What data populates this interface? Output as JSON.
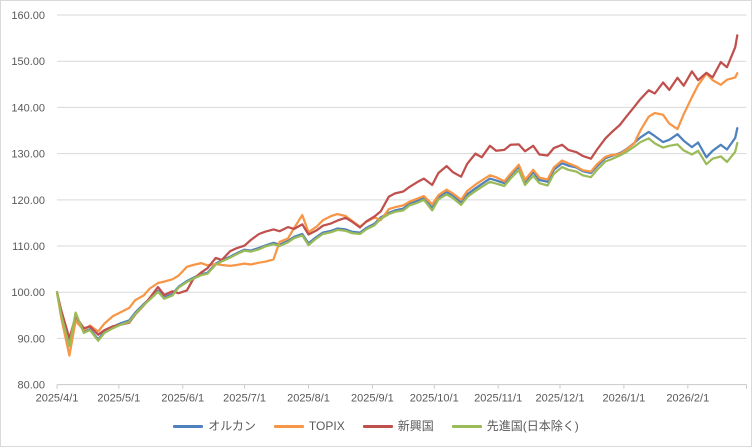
{
  "chart_data": {
    "type": "line",
    "title": "",
    "legend_position": "bottom",
    "grid": true,
    "y_axis": {
      "min": 80,
      "max": 160,
      "step": 10,
      "tick_labels": [
        "160.00",
        "150.00",
        "140.00",
        "130.00",
        "120.00",
        "110.00",
        "100.00",
        "90.00",
        "80.00"
      ]
    },
    "x_axis": {
      "tick_labels": [
        "2025/4/1",
        "2025/5/1",
        "2025/6/1",
        "2025/7/1",
        "2025/8/1",
        "2025/9/1",
        "2025/10/1",
        "2025/11/1",
        "2025/12/1",
        "2026/1/1",
        "2026/2/1"
      ],
      "start": "2025/4/1",
      "end": "2026/2/25"
    },
    "dates": [
      "2025/4/1",
      "2025/4/3",
      "2025/4/7",
      "2025/4/10",
      "2025/4/14",
      "2025/4/17",
      "2025/4/21",
      "2025/4/24",
      "2025/4/28",
      "2025/5/2",
      "2025/5/6",
      "2025/5/9",
      "2025/5/13",
      "2025/5/16",
      "2025/5/20",
      "2025/5/23",
      "2025/5/27",
      "2025/5/30",
      "2025/6/3",
      "2025/6/6",
      "2025/6/10",
      "2025/6/13",
      "2025/6/17",
      "2025/6/20",
      "2025/6/24",
      "2025/6/27",
      "2025/7/1",
      "2025/7/4",
      "2025/7/8",
      "2025/7/11",
      "2025/7/15",
      "2025/7/18",
      "2025/7/22",
      "2025/7/25",
      "2025/7/29",
      "2025/8/1",
      "2025/8/5",
      "2025/8/8",
      "2025/8/12",
      "2025/8/15",
      "2025/8/19",
      "2025/8/22",
      "2025/8/26",
      "2025/8/29",
      "2025/9/2",
      "2025/9/5",
      "2025/9/9",
      "2025/9/12",
      "2025/9/16",
      "2025/9/19",
      "2025/9/23",
      "2025/9/26",
      "2025/9/30",
      "2025/10/3",
      "2025/10/7",
      "2025/10/10",
      "2025/10/14",
      "2025/10/17",
      "2025/10/21",
      "2025/10/24",
      "2025/10/28",
      "2025/10/31",
      "2025/11/4",
      "2025/11/7",
      "2025/11/11",
      "2025/11/14",
      "2025/11/18",
      "2025/11/21",
      "2025/11/25",
      "2025/11/28",
      "2025/12/2",
      "2025/12/5",
      "2025/12/9",
      "2025/12/12",
      "2025/12/16",
      "2025/12/19",
      "2025/12/23",
      "2025/12/26",
      "2025/12/30",
      "2026/1/2",
      "2026/1/6",
      "2026/1/9",
      "2026/1/13",
      "2026/1/16",
      "2026/1/20",
      "2026/1/23",
      "2026/1/27",
      "2026/1/30",
      "2026/2/3",
      "2026/2/6",
      "2026/2/10",
      "2026/2/13",
      "2026/2/17",
      "2026/2/20",
      "2026/2/24",
      "2026/2/25"
    ],
    "series": [
      {
        "name": "オルカン",
        "color": "#4F81BD",
        "values": [
          100,
          95.3,
          88.6,
          95.0,
          91.4,
          92.0,
          89.8,
          91.5,
          92.5,
          93.3,
          93.9,
          95.6,
          97.4,
          98.6,
          100.3,
          98.9,
          99.6,
          101.2,
          102.4,
          103.1,
          103.9,
          104.2,
          106.2,
          106.9,
          107.7,
          108.4,
          109.2,
          109.0,
          109.6,
          110.1,
          110.7,
          110.3,
          111.1,
          112.0,
          112.6,
          110.6,
          112.0,
          112.9,
          113.3,
          113.8,
          113.6,
          113.1,
          112.9,
          113.9,
          114.8,
          116.2,
          117.2,
          117.7,
          118.1,
          119.2,
          119.8,
          120.4,
          118.2,
          120.6,
          121.7,
          121.0,
          119.4,
          121.2,
          122.5,
          123.4,
          124.6,
          124.2,
          123.6,
          125.3,
          127.2,
          123.9,
          126.0,
          124.3,
          123.9,
          126.5,
          127.9,
          127.4,
          127.0,
          126.2,
          125.8,
          127.3,
          129.0,
          129.5,
          130.1,
          130.9,
          132.3,
          133.5,
          134.7,
          133.8,
          132.5,
          133.0,
          134.2,
          132.8,
          131.4,
          132.4,
          129.2,
          130.6,
          131.9,
          130.9,
          133.4,
          135.5
        ]
      },
      {
        "name": "TOPIX",
        "color": "#F79646",
        "values": [
          100,
          94.6,
          86.3,
          93.8,
          91.8,
          92.8,
          91.5,
          93.2,
          94.8,
          95.7,
          96.6,
          98.3,
          99.3,
          100.8,
          102.0,
          102.3,
          102.8,
          103.6,
          105.5,
          105.9,
          106.3,
          105.8,
          106.1,
          105.9,
          105.7,
          105.9,
          106.2,
          106.0,
          106.4,
          106.6,
          107.1,
          110.9,
          111.6,
          113.9,
          116.7,
          113.0,
          114.2,
          115.6,
          116.5,
          116.9,
          116.5,
          115.5,
          114.2,
          115.2,
          116.2,
          115.6,
          118.0,
          118.4,
          118.8,
          119.6,
          120.3,
          120.8,
          119.0,
          121.0,
          122.2,
          121.4,
          120.0,
          121.9,
          123.3,
          124.2,
          125.3,
          124.9,
          124.0,
          125.6,
          127.6,
          124.3,
          126.5,
          124.8,
          124.4,
          127.0,
          128.5,
          127.9,
          127.2,
          126.4,
          126.1,
          127.7,
          129.3,
          129.7,
          129.9,
          130.8,
          132.2,
          135.0,
          138.0,
          138.8,
          138.4,
          136.5,
          135.3,
          138.5,
          142.2,
          144.8,
          147.3,
          145.9,
          144.9,
          146.0,
          146.5,
          147.4
        ]
      },
      {
        "name": "新興国",
        "color": "#C0504D",
        "values": [
          100,
          96.2,
          90.0,
          94.8,
          92.2,
          92.6,
          90.8,
          91.8,
          92.6,
          93.0,
          93.4,
          95.2,
          97.1,
          98.8,
          101.1,
          99.4,
          100.2,
          99.8,
          100.4,
          102.8,
          104.3,
          105.2,
          107.4,
          107.0,
          108.9,
          109.5,
          110.1,
          111.3,
          112.6,
          113.1,
          113.6,
          113.2,
          114.1,
          113.7,
          114.7,
          112.5,
          113.4,
          114.4,
          114.9,
          115.5,
          116.1,
          115.3,
          114.0,
          115.3,
          116.4,
          117.5,
          120.7,
          121.4,
          121.8,
          122.8,
          123.9,
          124.6,
          123.2,
          125.8,
          127.3,
          126.0,
          125.0,
          127.8,
          130.0,
          129.2,
          131.7,
          130.6,
          130.8,
          131.9,
          132.0,
          130.5,
          131.7,
          129.8,
          129.6,
          131.2,
          131.9,
          130.8,
          130.3,
          129.5,
          128.9,
          130.9,
          133.3,
          134.6,
          136.2,
          137.9,
          140.1,
          141.8,
          143.7,
          143.0,
          145.4,
          143.8,
          146.4,
          144.7,
          147.8,
          145.9,
          147.5,
          146.5,
          149.8,
          148.7,
          153.0,
          155.6
        ]
      },
      {
        "name": "先進国(日本除く)",
        "color": "#9BBB59",
        "values": [
          100,
          95.1,
          88.3,
          95.6,
          91.2,
          91.8,
          89.5,
          91.2,
          92.2,
          93.0,
          93.6,
          95.3,
          97.2,
          98.4,
          100.1,
          98.6,
          99.3,
          101.0,
          102.2,
          102.9,
          103.7,
          104.0,
          106.0,
          106.7,
          107.5,
          108.2,
          109.0,
          108.8,
          109.3,
          109.9,
          110.4,
          110.0,
          110.8,
          111.7,
          112.3,
          110.2,
          111.7,
          112.6,
          113.0,
          113.5,
          113.3,
          112.8,
          112.6,
          113.6,
          114.5,
          115.9,
          116.9,
          117.4,
          117.7,
          118.8,
          119.4,
          120.0,
          117.7,
          120.1,
          121.2,
          120.4,
          118.9,
          120.6,
          121.9,
          122.8,
          123.9,
          123.5,
          123.0,
          124.6,
          126.4,
          123.2,
          125.2,
          123.6,
          123.1,
          125.6,
          127.1,
          126.5,
          126.1,
          125.3,
          124.9,
          126.5,
          128.3,
          128.8,
          129.6,
          130.3,
          131.5,
          132.5,
          133.3,
          132.2,
          131.3,
          131.7,
          132.0,
          130.7,
          129.8,
          130.6,
          127.7,
          128.9,
          129.4,
          128.2,
          130.4,
          132.3
        ]
      }
    ],
    "colors": {
      "gridline": "#d9d9d9",
      "axis_line": "#c9c9c9",
      "axis_text": "#595959",
      "background": "#ffffff"
    }
  }
}
